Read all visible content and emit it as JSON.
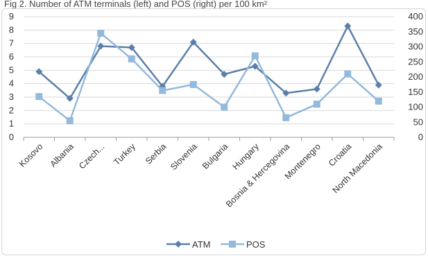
{
  "chart_data": {
    "type": "line",
    "title": "Fig 2. Number of ATM terminals (left) and POS (right) per 100 km²",
    "categories": [
      "Kosovo",
      "Albania",
      "Czech...",
      "Turkey",
      "Serbia",
      "Slovenia",
      "Bulgaria",
      "Hungary",
      "Bosnia & Hercegovina",
      "Montenegro",
      "Croatia",
      "North Macedonia"
    ],
    "y_left": {
      "range": [
        0,
        9
      ],
      "ticks": [
        "0",
        "1",
        "2",
        "3",
        "4",
        "5",
        "6",
        "7",
        "8",
        "9"
      ]
    },
    "y_right": {
      "range": [
        0,
        400
      ],
      "ticks": [
        "0",
        "50",
        "100",
        "150",
        "200",
        "250",
        "300",
        "350",
        "400"
      ]
    },
    "series": [
      {
        "name": "ATM",
        "axis": "left",
        "color": "#5b7fa8",
        "marker": "diamond",
        "values": [
          4.9,
          2.9,
          6.8,
          6.7,
          3.8,
          7.1,
          4.7,
          5.3,
          3.3,
          3.6,
          8.3,
          3.9
        ]
      },
      {
        "name": "POS",
        "axis": "right",
        "color": "#93b9dc",
        "marker": "square",
        "values": [
          135,
          55,
          345,
          260,
          155,
          175,
          100,
          270,
          65,
          110,
          210,
          120
        ]
      }
    ],
    "grid": true,
    "legend": "bottom"
  }
}
